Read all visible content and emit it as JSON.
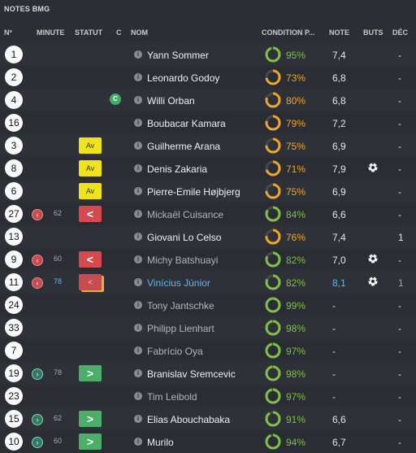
{
  "title": "NOTES BMG",
  "columns": {
    "number": "Nº",
    "minute": "MINUTE",
    "status": "STATUT",
    "captain": "C",
    "name": "NOM",
    "condition": "CONDITION P...",
    "rating": "NOTE",
    "goals": "BUTS",
    "decision": "DÉC"
  },
  "colors": {
    "condition_green": "#7fc047",
    "condition_orange": "#f0a62c",
    "highlight": "#5fb7ea"
  },
  "players": [
    {
      "number": "1",
      "minute": "",
      "sub": "",
      "status": "",
      "status_label": "",
      "captain": false,
      "name": "Yann Sommer",
      "name_style": "normal",
      "condition": "95%",
      "condition_color": "green",
      "condition_fraction": 0.95,
      "rating": "7,4",
      "goal": false,
      "decision": "-"
    },
    {
      "number": "2",
      "minute": "",
      "sub": "",
      "status": "",
      "status_label": "",
      "captain": false,
      "name": "Leonardo Godoy",
      "name_style": "normal",
      "condition": "73%",
      "condition_color": "orange",
      "condition_fraction": 0.73,
      "rating": "6,8",
      "goal": false,
      "decision": "-"
    },
    {
      "number": "4",
      "minute": "",
      "sub": "",
      "status": "",
      "status_label": "",
      "captain": true,
      "captain_label": "C",
      "name": "Willi Orban",
      "name_style": "normal",
      "condition": "80%",
      "condition_color": "orange",
      "condition_fraction": 0.8,
      "rating": "6,8",
      "goal": false,
      "decision": "-"
    },
    {
      "number": "16",
      "minute": "",
      "sub": "",
      "status": "",
      "status_label": "",
      "captain": false,
      "name": "Boubacar Kamara",
      "name_style": "normal",
      "condition": "79%",
      "condition_color": "orange",
      "condition_fraction": 0.79,
      "rating": "7,2",
      "goal": false,
      "decision": "-"
    },
    {
      "number": "3",
      "minute": "",
      "sub": "",
      "status": "av",
      "status_label": "Av",
      "captain": false,
      "name": "Guilherme Arana",
      "name_style": "normal",
      "condition": "75%",
      "condition_color": "orange",
      "condition_fraction": 0.75,
      "rating": "6,9",
      "goal": false,
      "decision": "-"
    },
    {
      "number": "8",
      "minute": "",
      "sub": "",
      "status": "av",
      "status_label": "Av",
      "captain": false,
      "name": "Denis Zakaria",
      "name_style": "normal",
      "condition": "71%",
      "condition_color": "orange",
      "condition_fraction": 0.71,
      "rating": "7,9",
      "goal": true,
      "decision": "-"
    },
    {
      "number": "6",
      "minute": "",
      "sub": "",
      "status": "av",
      "status_label": "Av",
      "captain": false,
      "name": "Pierre-Emile Højbjerg",
      "name_style": "normal",
      "condition": "75%",
      "condition_color": "orange",
      "condition_fraction": 0.75,
      "rating": "6,9",
      "goal": false,
      "decision": "-"
    },
    {
      "number": "27",
      "minute": "62",
      "sub": "out",
      "status": "red",
      "status_label": "<",
      "captain": false,
      "name": "Mickaël Cuisance",
      "name_style": "muted",
      "condition": "84%",
      "condition_color": "green",
      "condition_fraction": 0.84,
      "rating": "6,6",
      "goal": false,
      "decision": "-"
    },
    {
      "number": "13",
      "minute": "",
      "sub": "",
      "status": "",
      "status_label": "",
      "captain": false,
      "name": "Giovani Lo Celso",
      "name_style": "normal",
      "condition": "76%",
      "condition_color": "orange",
      "condition_fraction": 0.76,
      "rating": "7,4",
      "goal": false,
      "decision": "1"
    },
    {
      "number": "9",
      "minute": "60",
      "sub": "out",
      "status": "red",
      "status_label": "<",
      "captain": false,
      "name": "Michy Batshuayi",
      "name_style": "muted",
      "condition": "82%",
      "condition_color": "green",
      "condition_fraction": 0.82,
      "rating": "7,0",
      "goal": true,
      "decision": "-"
    },
    {
      "number": "11",
      "minute": "78",
      "sub": "out",
      "status": "stack",
      "status_label": "<",
      "captain": false,
      "name": "Vinícius Júnior",
      "name_style": "highlight",
      "condition": "82%",
      "condition_color": "green",
      "condition_fraction": 0.82,
      "rating": "8,1",
      "goal": true,
      "decision": "1"
    },
    {
      "number": "24",
      "minute": "",
      "sub": "",
      "status": "",
      "status_label": "",
      "captain": false,
      "name": "Tony Jantschke",
      "name_style": "muted",
      "condition": "99%",
      "condition_color": "green",
      "condition_fraction": 0.99,
      "rating": "-",
      "goal": false,
      "decision": "-"
    },
    {
      "number": "33",
      "minute": "",
      "sub": "",
      "status": "",
      "status_label": "",
      "captain": false,
      "name": "Philipp Lienhart",
      "name_style": "muted",
      "condition": "98%",
      "condition_color": "green",
      "condition_fraction": 0.98,
      "rating": "-",
      "goal": false,
      "decision": "-"
    },
    {
      "number": "7",
      "minute": "",
      "sub": "",
      "status": "",
      "status_label": "",
      "captain": false,
      "name": "Fabrício Oya",
      "name_style": "muted",
      "condition": "97%",
      "condition_color": "green",
      "condition_fraction": 0.97,
      "rating": "-",
      "goal": false,
      "decision": "-"
    },
    {
      "number": "19",
      "minute": "78",
      "sub": "in",
      "status": "green",
      "status_label": ">",
      "captain": false,
      "name": "Branislav Sremcevic",
      "name_style": "normal",
      "condition": "98%",
      "condition_color": "green",
      "condition_fraction": 0.98,
      "rating": "-",
      "goal": false,
      "decision": "-"
    },
    {
      "number": "23",
      "minute": "",
      "sub": "",
      "status": "",
      "status_label": "",
      "captain": false,
      "name": "Tim Leibold",
      "name_style": "muted",
      "condition": "97%",
      "condition_color": "green",
      "condition_fraction": 0.97,
      "rating": "-",
      "goal": false,
      "decision": "-"
    },
    {
      "number": "15",
      "minute": "62",
      "sub": "in",
      "status": "green",
      "status_label": ">",
      "captain": false,
      "name": "Elias Abouchabaka",
      "name_style": "normal",
      "condition": "91%",
      "condition_color": "green",
      "condition_fraction": 0.91,
      "rating": "6,6",
      "goal": false,
      "decision": "-"
    },
    {
      "number": "10",
      "minute": "60",
      "sub": "in",
      "status": "green",
      "status_label": ">",
      "captain": false,
      "name": "Murilo",
      "name_style": "normal",
      "condition": "94%",
      "condition_color": "green",
      "condition_fraction": 0.94,
      "rating": "6,7",
      "goal": false,
      "decision": "-"
    }
  ]
}
